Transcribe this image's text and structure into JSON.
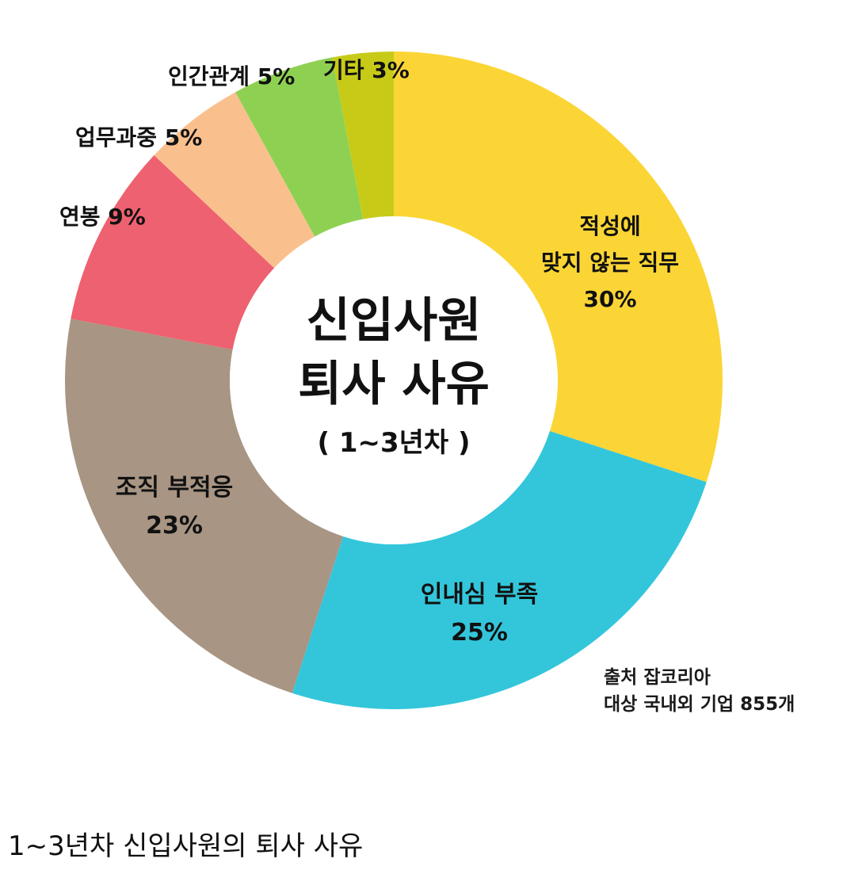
{
  "chart_data": {
    "type": "pie",
    "donut": true,
    "center_title": {
      "line1": "신입사원",
      "line2": "퇴사 사유",
      "line3": "( 1~3년차 )"
    },
    "slices": [
      {
        "name": "적성에 맞지 않는 직무",
        "label_lines": [
          "적성에",
          "맞지 않는 직무",
          "30%"
        ],
        "value": 30,
        "color": "#FBD535"
      },
      {
        "name": "인내심 부족",
        "label_lines": [
          "인내심 부족",
          "25%"
        ],
        "value": 25,
        "color": "#33C6DB"
      },
      {
        "name": "조직 부적응",
        "label_lines": [
          "조직 부적응",
          "23%"
        ],
        "value": 23,
        "color": "#A89583"
      },
      {
        "name": "연봉",
        "label_lines": [
          "연봉  9%"
        ],
        "value": 9,
        "color": "#EE6170"
      },
      {
        "name": "업무과중",
        "label_lines": [
          "업무과중 5%"
        ],
        "value": 5,
        "color": "#F9C08E"
      },
      {
        "name": "인간관계",
        "label_lines": [
          "인간관계 5%"
        ],
        "value": 5,
        "color": "#8ED152"
      },
      {
        "name": "기타",
        "label_lines": [
          "기타 3%"
        ],
        "value": 3,
        "color": "#C7CB18"
      }
    ],
    "legend": "none"
  },
  "source": {
    "line1": "출처 잡코리아",
    "line2": "대상 국내외 기업 855개"
  },
  "caption": "1~3년차 신입사원의 퇴사 사유"
}
